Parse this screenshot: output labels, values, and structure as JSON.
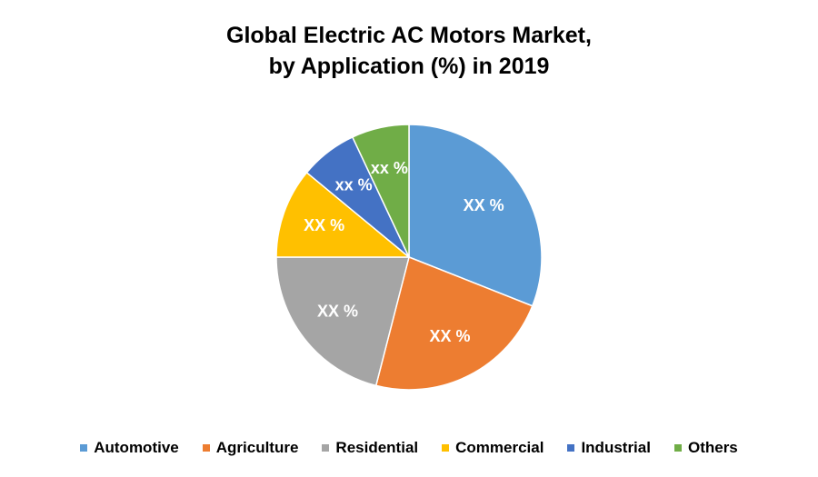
{
  "title_line1": "Global Electric AC Motors Market,",
  "title_line2": "by Application (%) in 2019",
  "chart_data": {
    "type": "pie",
    "title": "Global Electric AC Motors Market, by Application (%) in 2019",
    "legend_position": "bottom",
    "slices": [
      {
        "label": "Automotive",
        "value": 31,
        "display": "XX %",
        "color": "#5B9BD5"
      },
      {
        "label": "Agriculture",
        "value": 23,
        "display": "XX %",
        "color": "#ED7D31"
      },
      {
        "label": "Residential",
        "value": 21,
        "display": "XX %",
        "color": "#A5A5A5"
      },
      {
        "label": "Commercial",
        "value": 11,
        "display": "XX %",
        "color": "#FFC000"
      },
      {
        "label": "Industrial",
        "value": 7,
        "display": "xx %",
        "color": "#4472C4"
      },
      {
        "label": "Others",
        "value": 7,
        "display": "xx %",
        "color": "#70AD47"
      }
    ]
  }
}
